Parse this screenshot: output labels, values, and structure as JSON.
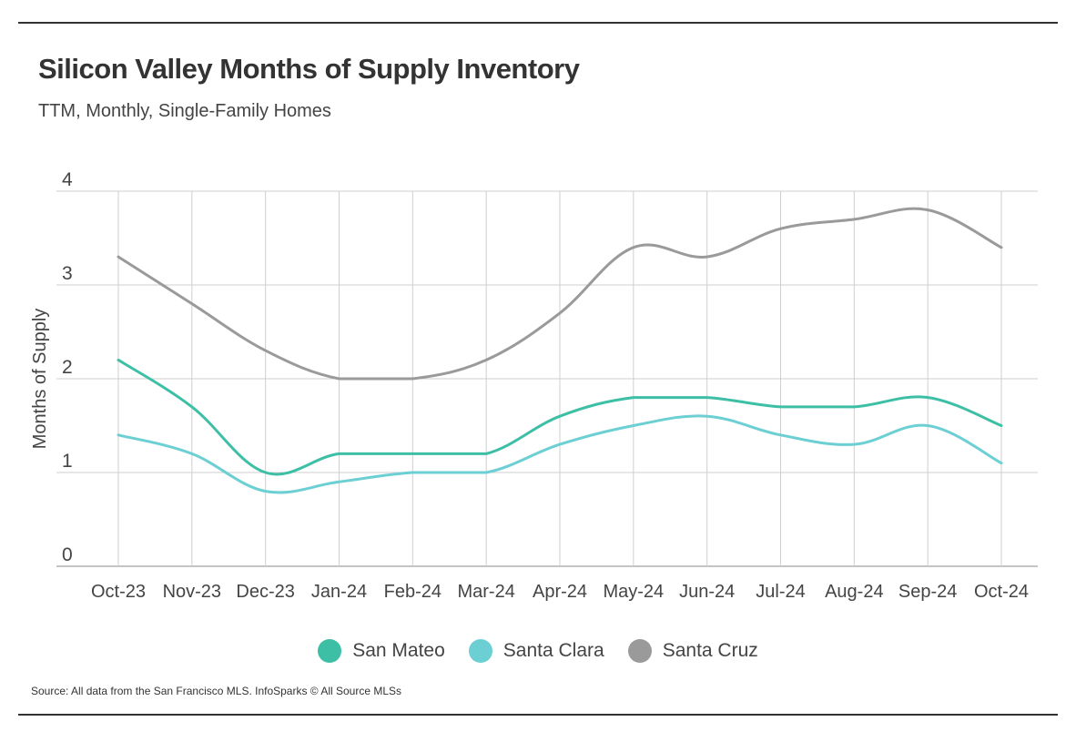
{
  "header": {
    "title": "Silicon Valley Months of Supply Inventory",
    "subtitle": "TTM, Monthly, Single-Family Homes"
  },
  "footer": {
    "source": "Source:  All data from the San Francisco MLS. InfoSparks © All Source MLSs"
  },
  "chart_data": {
    "type": "line",
    "title": "Silicon Valley Months of Supply Inventory",
    "subtitle": "TTM, Monthly, Single-Family Homes",
    "xlabel": "",
    "ylabel": "Months of Supply",
    "categories": [
      "Oct-23",
      "Nov-23",
      "Dec-23",
      "Jan-24",
      "Feb-24",
      "Mar-24",
      "Apr-24",
      "May-24",
      "Jun-24",
      "Jul-24",
      "Aug-24",
      "Sep-24",
      "Oct-24"
    ],
    "ylim": [
      0,
      4
    ],
    "yticks": [
      0,
      1,
      2,
      3,
      4
    ],
    "grid": true,
    "legend_position": "bottom",
    "series": [
      {
        "name": "San Mateo",
        "color": "#3dbfa6",
        "values": [
          2.2,
          1.7,
          1.0,
          1.2,
          1.2,
          1.2,
          1.6,
          1.8,
          1.8,
          1.7,
          1.7,
          1.8,
          1.5
        ]
      },
      {
        "name": "Santa Clara",
        "color": "#6ccfd3",
        "values": [
          1.4,
          1.2,
          0.8,
          0.9,
          1.0,
          1.0,
          1.3,
          1.5,
          1.6,
          1.4,
          1.3,
          1.5,
          1.1
        ]
      },
      {
        "name": "Santa Cruz",
        "color": "#9a9a9a",
        "values": [
          3.3,
          2.8,
          2.3,
          2.0,
          2.0,
          2.2,
          2.7,
          3.4,
          3.3,
          3.6,
          3.7,
          3.8,
          3.4
        ]
      }
    ]
  }
}
